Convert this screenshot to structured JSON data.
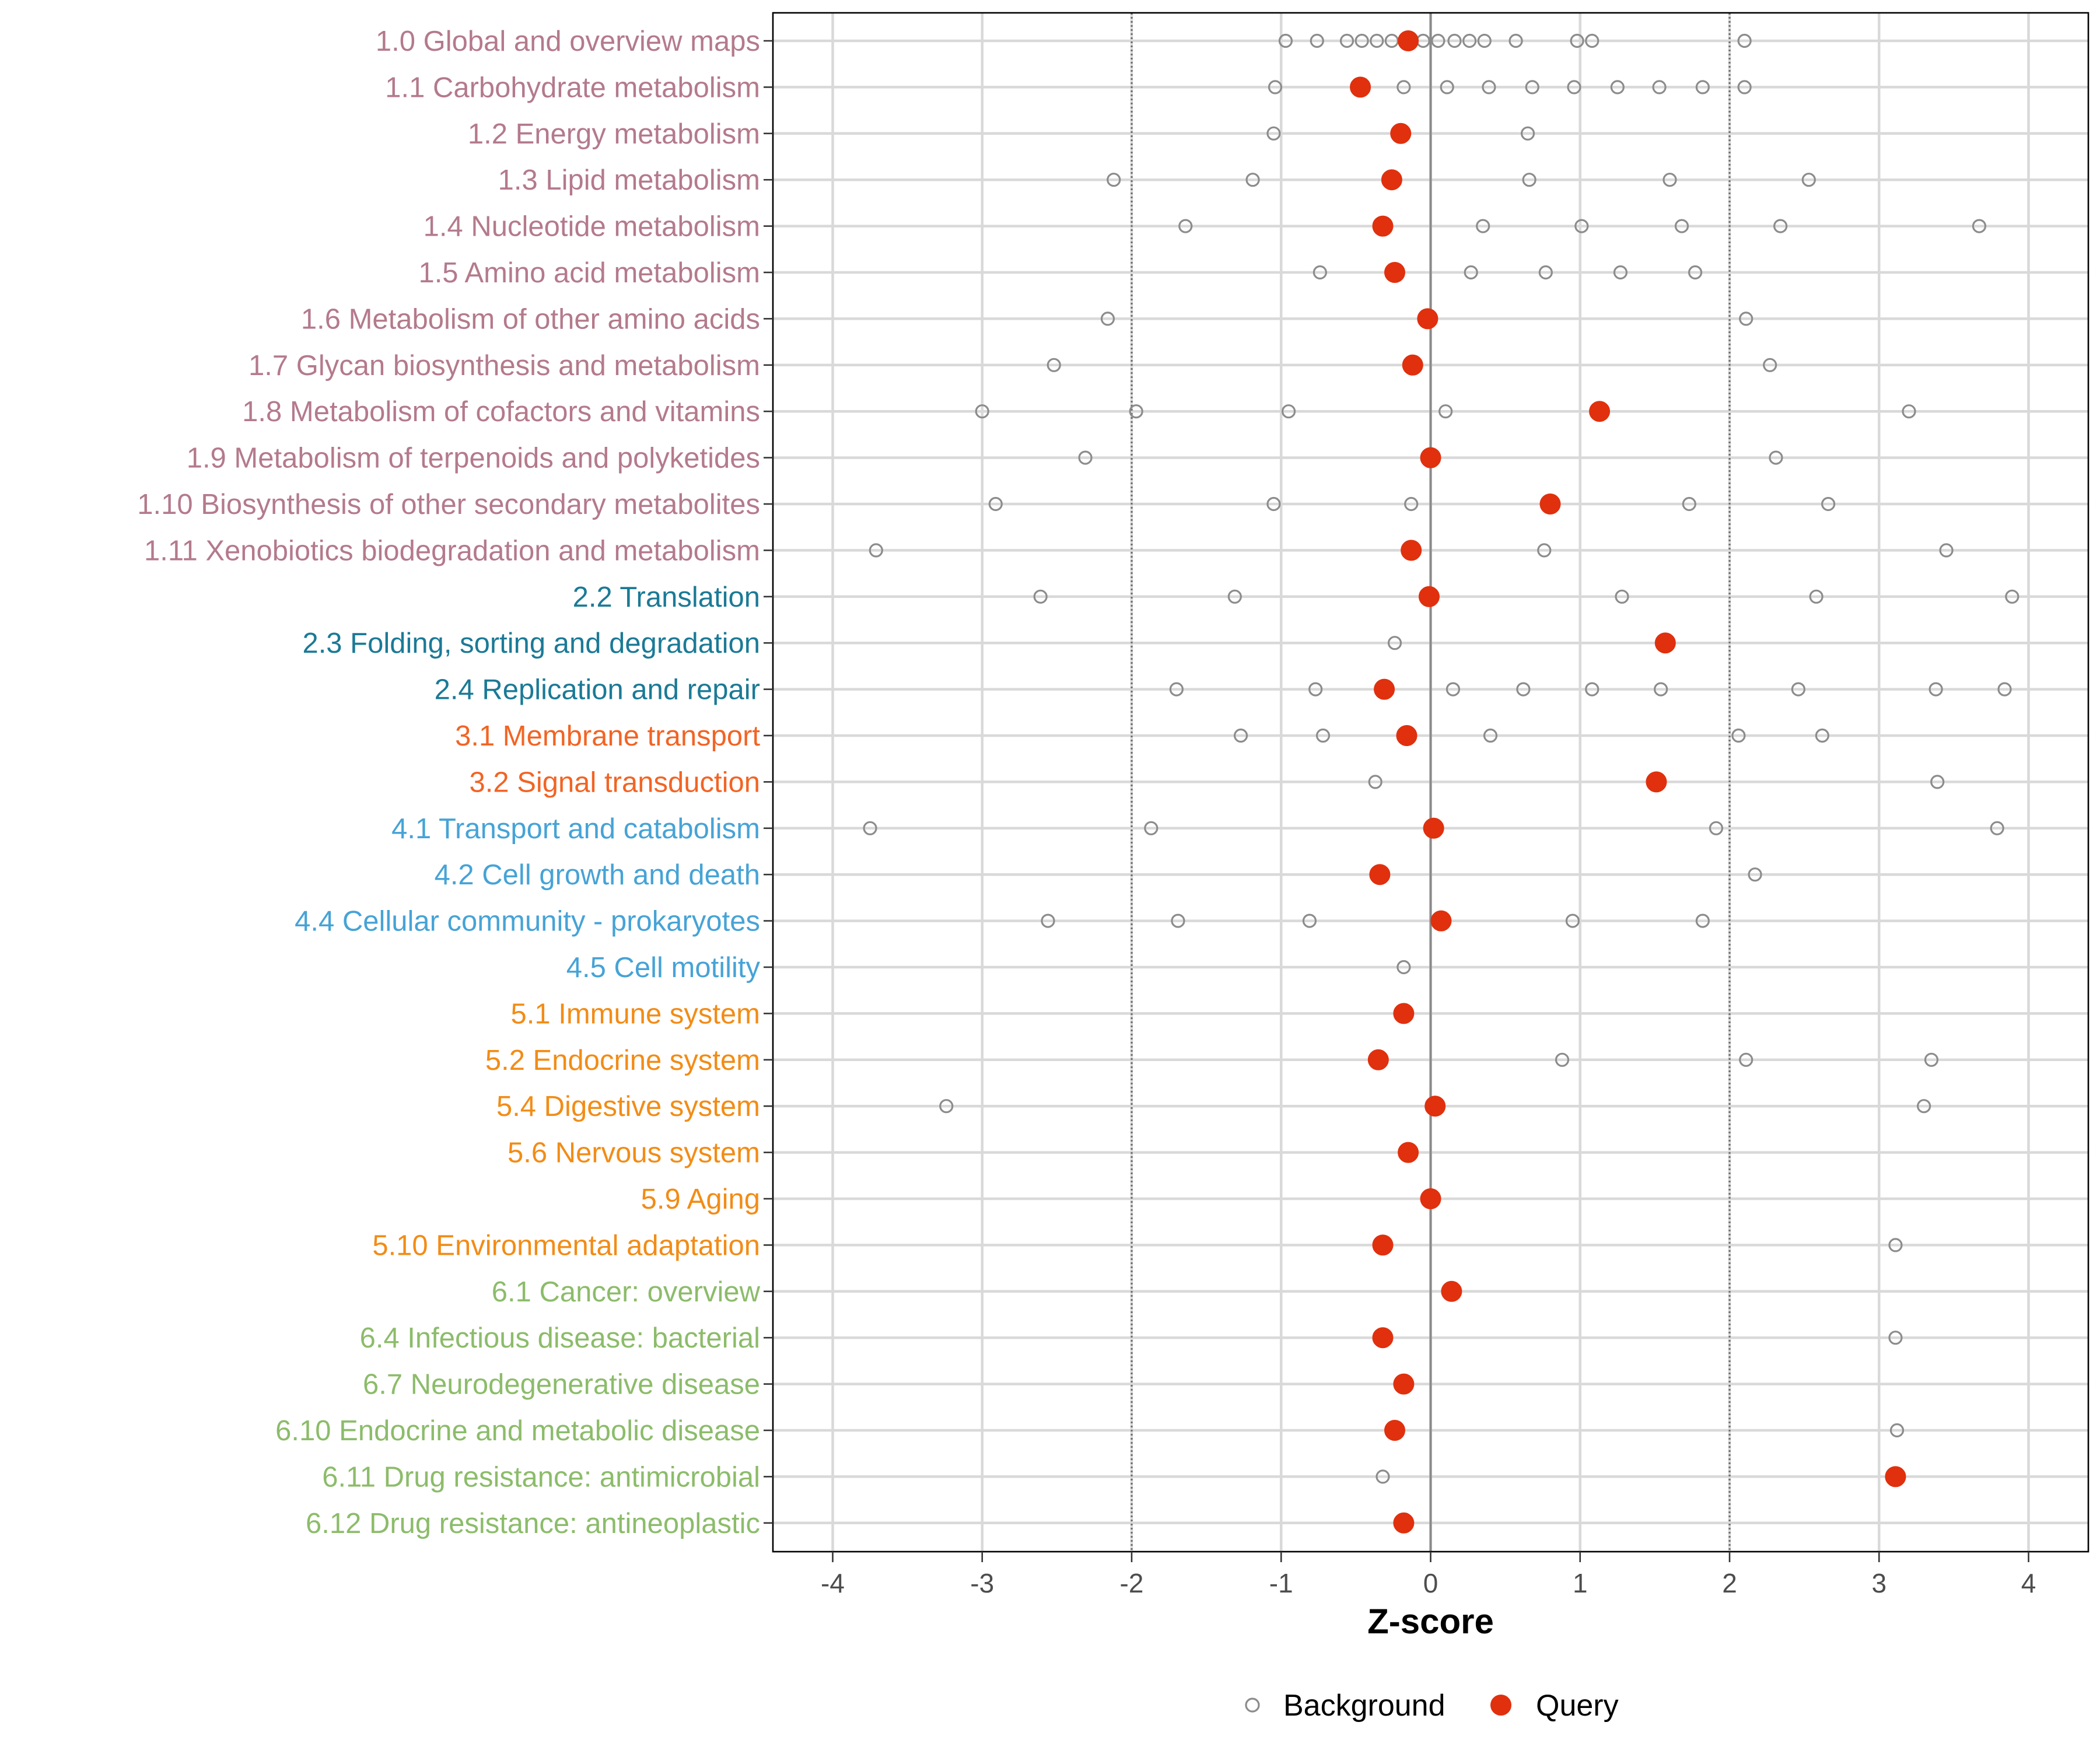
{
  "chart_data": {
    "type": "scatter",
    "title": "",
    "xlabel": "Z-score",
    "ylabel": "",
    "xlim": [
      -4.4,
      4.4
    ],
    "xticks": [
      "-4",
      "-3",
      "-2",
      "-1",
      "0",
      "1",
      "2",
      "3",
      "4"
    ],
    "reference_lines": [
      -2,
      2
    ],
    "zero_line": 0,
    "legend": {
      "position": "bottom",
      "entries": [
        {
          "label": "Background",
          "marker": "open-circle",
          "color": "#8c8c8c"
        },
        {
          "label": "Query",
          "marker": "filled-circle",
          "color": "#e0300e"
        }
      ]
    },
    "group_colors": {
      "1": "#b47a8c",
      "2": "#1b7a96",
      "3": "#f26424",
      "4": "#46a3d6",
      "5": "#f28c16",
      "6": "#8cbc6a"
    },
    "categories": [
      {
        "label": "1.0 Global and overview maps",
        "group": "1",
        "query": -0.15,
        "background": [
          -0.97,
          -0.76,
          -0.56,
          -0.46,
          -0.36,
          -0.26,
          -0.05,
          0.05,
          0.16,
          0.26,
          0.36,
          0.57,
          0.98,
          1.08,
          2.1
        ]
      },
      {
        "label": "1.1 Carbohydrate metabolism",
        "group": "1",
        "query": -0.47,
        "background": [
          -1.04,
          -0.18,
          0.11,
          0.39,
          0.68,
          0.96,
          1.25,
          1.53,
          1.82,
          2.1
        ]
      },
      {
        "label": "1.2 Energy metabolism",
        "group": "1",
        "query": -0.2,
        "background": [
          -1.05,
          0.65
        ]
      },
      {
        "label": "1.3 Lipid metabolism",
        "group": "1",
        "query": -0.26,
        "background": [
          -2.12,
          -1.19,
          0.66,
          1.6,
          2.53
        ]
      },
      {
        "label": "1.4 Nucleotide metabolism",
        "group": "1",
        "query": -0.32,
        "background": [
          -1.64,
          0.35,
          1.01,
          1.68,
          2.34,
          3.67
        ]
      },
      {
        "label": "1.5 Amino acid metabolism",
        "group": "1",
        "query": -0.24,
        "background": [
          -0.74,
          0.27,
          0.77,
          1.27,
          1.77
        ]
      },
      {
        "label": "1.6 Metabolism of other amino acids",
        "group": "1",
        "query": -0.02,
        "background": [
          -2.16,
          2.11
        ]
      },
      {
        "label": "1.7 Glycan biosynthesis and metabolism",
        "group": "1",
        "query": -0.12,
        "background": [
          -2.52,
          2.27
        ]
      },
      {
        "label": "1.8 Metabolism of cofactors and vitamins",
        "group": "1",
        "query": 1.13,
        "background": [
          -3.0,
          -1.97,
          -0.95,
          0.1,
          3.2
        ]
      },
      {
        "label": "1.9 Metabolism of terpenoids and polyketides",
        "group": "1",
        "query": 0.0,
        "background": [
          -2.31,
          2.31
        ]
      },
      {
        "label": "1.10 Biosynthesis of other secondary metabolites",
        "group": "1",
        "query": 0.8,
        "background": [
          -2.91,
          -1.05,
          -0.13,
          1.73,
          2.66
        ]
      },
      {
        "label": "1.11 Xenobiotics biodegradation and metabolism",
        "group": "1",
        "query": -0.13,
        "background": [
          -3.71,
          0.76,
          3.45
        ]
      },
      {
        "label": "2.2 Translation",
        "group": "2",
        "query": -0.01,
        "background": [
          -2.61,
          -1.31,
          1.28,
          2.58,
          3.89
        ]
      },
      {
        "label": "2.3 Folding, sorting and degradation",
        "group": "2",
        "query": 1.57,
        "background": [
          -0.24
        ]
      },
      {
        "label": "2.4 Replication and repair",
        "group": "2",
        "query": -0.31,
        "background": [
          -1.7,
          -0.77,
          0.15,
          0.62,
          1.08,
          1.54,
          2.46,
          3.38,
          3.84
        ]
      },
      {
        "label": "3.1 Membrane transport",
        "group": "3",
        "query": -0.16,
        "background": [
          -1.27,
          -0.72,
          0.4,
          2.06,
          2.62
        ]
      },
      {
        "label": "3.2 Signal transduction",
        "group": "3",
        "query": 1.51,
        "background": [
          -0.37,
          3.39
        ]
      },
      {
        "label": "4.1 Transport and catabolism",
        "group": "4",
        "query": 0.02,
        "background": [
          -3.75,
          -1.87,
          1.91,
          3.79
        ]
      },
      {
        "label": "4.2 Cell growth and death",
        "group": "4",
        "query": -0.34,
        "background": [
          2.17
        ]
      },
      {
        "label": "4.4 Cellular community - prokaryotes",
        "group": "4",
        "query": 0.07,
        "background": [
          -2.56,
          -1.69,
          -0.81,
          0.95,
          1.82
        ]
      },
      {
        "label": "4.5 Cell motility",
        "group": "4",
        "query": null,
        "background": [
          -0.18
        ]
      },
      {
        "label": "5.1 Immune system",
        "group": "5",
        "query": -0.18,
        "background": []
      },
      {
        "label": "5.2 Endocrine system",
        "group": "5",
        "query": -0.35,
        "background": [
          0.88,
          2.11,
          3.35
        ]
      },
      {
        "label": "5.4 Digestive system",
        "group": "5",
        "query": 0.03,
        "background": [
          -3.24,
          3.3
        ]
      },
      {
        "label": "5.6 Nervous system",
        "group": "5",
        "query": -0.15,
        "background": []
      },
      {
        "label": "5.9 Aging",
        "group": "5",
        "query": 0.0,
        "background": []
      },
      {
        "label": "5.10 Environmental adaptation",
        "group": "5",
        "query": -0.32,
        "background": [
          3.11
        ]
      },
      {
        "label": "6.1 Cancer: overview",
        "group": "6",
        "query": 0.14,
        "background": []
      },
      {
        "label": "6.4 Infectious disease: bacterial",
        "group": "6",
        "query": -0.32,
        "background": [
          3.11
        ]
      },
      {
        "label": "6.7 Neurodegenerative disease",
        "group": "6",
        "query": -0.18,
        "background": []
      },
      {
        "label": "6.10 Endocrine and metabolic disease",
        "group": "6",
        "query": -0.24,
        "background": [
          3.12
        ]
      },
      {
        "label": "6.11 Drug resistance: antimicrobial",
        "group": "6",
        "query": 3.11,
        "background": [
          -0.32
        ]
      },
      {
        "label": "6.12 Drug resistance: antineoplastic",
        "group": "6",
        "query": -0.18,
        "background": []
      }
    ]
  }
}
